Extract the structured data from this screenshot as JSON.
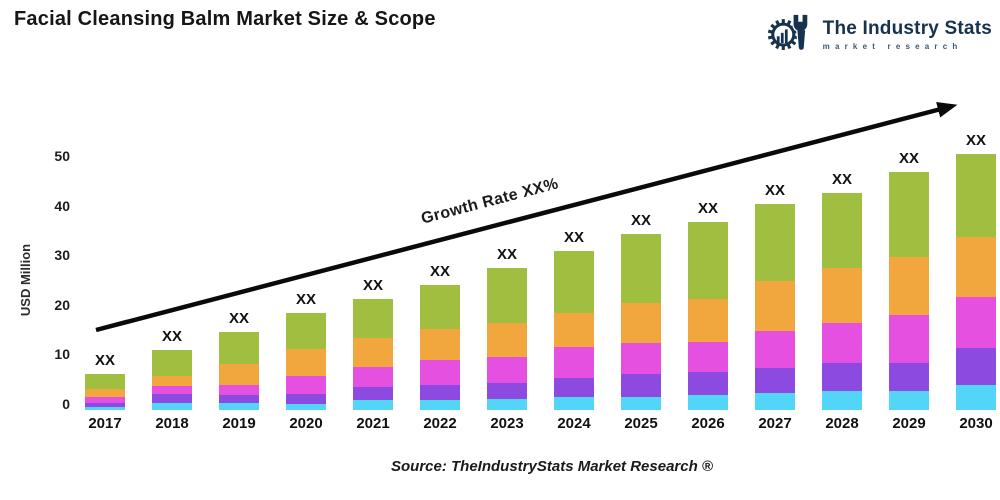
{
  "title": "Facial Cleansing Balm Market Size & Scope",
  "logo": {
    "name": "The Industry Stats",
    "tagline": "market research",
    "icon": "gear-wrench-barchart-icon",
    "color": "#16324f"
  },
  "annotations": {
    "growth_label": "Growth Rate XX%",
    "bar_value_label": "XX"
  },
  "source_line": "Source: TheIndustryStats Market Research ®",
  "axis": {
    "y_label": "USD Million",
    "y_ticks": [
      0,
      10,
      20,
      30,
      40,
      50
    ]
  },
  "colors": {
    "segment_cyan": "#52d5f6",
    "segment_purple": "#8c4ae0",
    "segment_magenta": "#e650e0",
    "segment_orange": "#f2a63e",
    "segment_green": "#a0bf40",
    "arrow": "#0a0a0a",
    "logo_navy": "#16324f"
  },
  "chart_data": {
    "type": "bar",
    "stacked": true,
    "title": "Facial Cleansing Balm Market Size & Scope",
    "xlabel": "",
    "ylabel": "USD Million",
    "ylim": [
      0,
      50
    ],
    "grid": false,
    "legend": "none",
    "bar_top_labels": "XX (masked value shown above every bar)",
    "trend_annotation": "Growth Rate XX% (rising arrow from 2017 to 2030)",
    "categories": [
      "2017",
      "2018",
      "2019",
      "2020",
      "2021",
      "2022",
      "2023",
      "2024",
      "2025",
      "2026",
      "2027",
      "2028",
      "2029",
      "2030"
    ],
    "series_order": "bottom-to-top",
    "series": [
      {
        "name": "segment-1-cyan",
        "color": "#52d5f6",
        "values": [
          0.6,
          1.4,
          1.3,
          1.2,
          1.9,
          1.9,
          2.1,
          2.5,
          2.5,
          3.0,
          3.3,
          3.8,
          3.8,
          5.0
        ]
      },
      {
        "name": "segment-2-purple",
        "color": "#8c4ae0",
        "values": [
          0.8,
          1.8,
          1.7,
          2.0,
          2.6,
          3.1,
          3.3,
          3.9,
          4.6,
          4.6,
          5.0,
          5.6,
          5.6,
          7.3
        ]
      },
      {
        "name": "segment-3-magenta",
        "color": "#e650e0",
        "values": [
          1.2,
          1.6,
          2.0,
          3.6,
          4.0,
          5.0,
          5.2,
          6.0,
          6.2,
          5.8,
          7.4,
          7.8,
          9.5,
          10.0
        ]
      },
      {
        "name": "segment-4-orange",
        "color": "#f2a63e",
        "values": [
          1.6,
          2.0,
          4.2,
          5.3,
          5.7,
          6.1,
          6.7,
          6.9,
          7.8,
          8.6,
          9.9,
          10.9,
          11.5,
          11.9
        ]
      },
      {
        "name": "segment-5-green",
        "color": "#a0bf40",
        "values": [
          3.0,
          5.0,
          6.3,
          7.1,
          7.7,
          8.7,
          10.8,
          12.1,
          13.8,
          15.2,
          15.2,
          14.9,
          16.8,
          16.5
        ]
      }
    ],
    "totals_estimated": [
      7.2,
      11.8,
      15.5,
      19.2,
      21.9,
      24.8,
      28.1,
      31.4,
      34.9,
      37.2,
      40.8,
      43.0,
      47.2,
      50.7
    ]
  }
}
